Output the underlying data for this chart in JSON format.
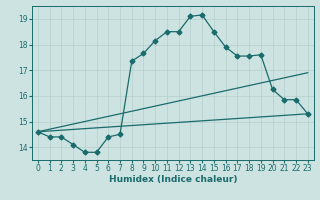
{
  "xlabel": "Humidex (Indice chaleur)",
  "bg_color": "#cde3e1",
  "line_color": "#1a6b6b",
  "grid_color": "#b5cfcd",
  "xlim": [
    -0.5,
    23.5
  ],
  "ylim": [
    13.5,
    19.5
  ],
  "xticks": [
    0,
    1,
    2,
    3,
    4,
    5,
    6,
    7,
    8,
    9,
    10,
    11,
    12,
    13,
    14,
    15,
    16,
    17,
    18,
    19,
    20,
    21,
    22,
    23
  ],
  "yticks": [
    14,
    15,
    16,
    17,
    18,
    19
  ],
  "line1_x": [
    0,
    1,
    2,
    3,
    4,
    5,
    6,
    7,
    8,
    9,
    10,
    11,
    12,
    13,
    14,
    15,
    16,
    17,
    18,
    19,
    20,
    21,
    22,
    23
  ],
  "line1_y": [
    14.6,
    14.4,
    14.4,
    14.1,
    13.8,
    13.8,
    14.4,
    14.5,
    17.35,
    17.65,
    18.15,
    18.5,
    18.5,
    19.1,
    19.15,
    18.5,
    17.9,
    17.55,
    17.55,
    17.6,
    16.25,
    15.85,
    15.85,
    15.3
  ],
  "line2_x": [
    0,
    23
  ],
  "line2_y": [
    14.6,
    16.9
  ],
  "line3_x": [
    0,
    23
  ],
  "line3_y": [
    14.6,
    15.3
  ]
}
